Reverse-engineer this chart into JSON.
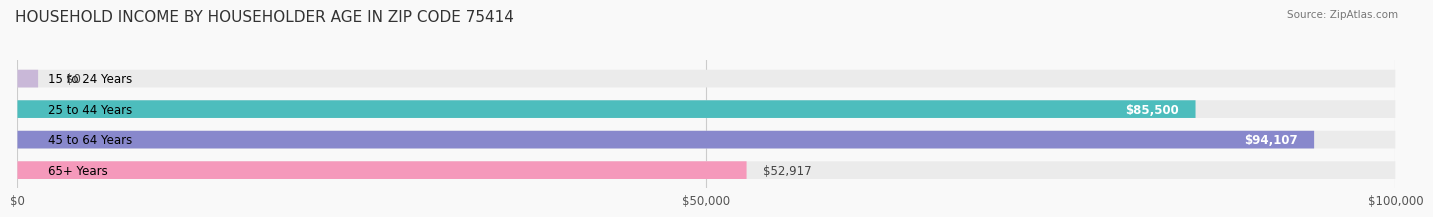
{
  "title": "HOUSEHOLD INCOME BY HOUSEHOLDER AGE IN ZIP CODE 75414",
  "source": "Source: ZipAtlas.com",
  "categories": [
    "15 to 24 Years",
    "25 to 44 Years",
    "45 to 64 Years",
    "65+ Years"
  ],
  "values": [
    0,
    85500,
    94107,
    52917
  ],
  "value_labels": [
    "$0",
    "$85,500",
    "$94,107",
    "$52,917"
  ],
  "bar_colors": [
    "#c9b8d8",
    "#4dbdbd",
    "#8888cc",
    "#f599bb"
  ],
  "bar_bg_color": "#ebebeb",
  "xlim": [
    0,
    100000
  ],
  "xtick_values": [
    0,
    50000,
    100000
  ],
  "xtick_labels": [
    "$0",
    "$50,000",
    "$100,000"
  ],
  "background_color": "#f9f9f9",
  "title_fontsize": 11,
  "bar_height": 0.55,
  "label_fontsize": 8.5,
  "value_label_inside_threshold": 0.82
}
